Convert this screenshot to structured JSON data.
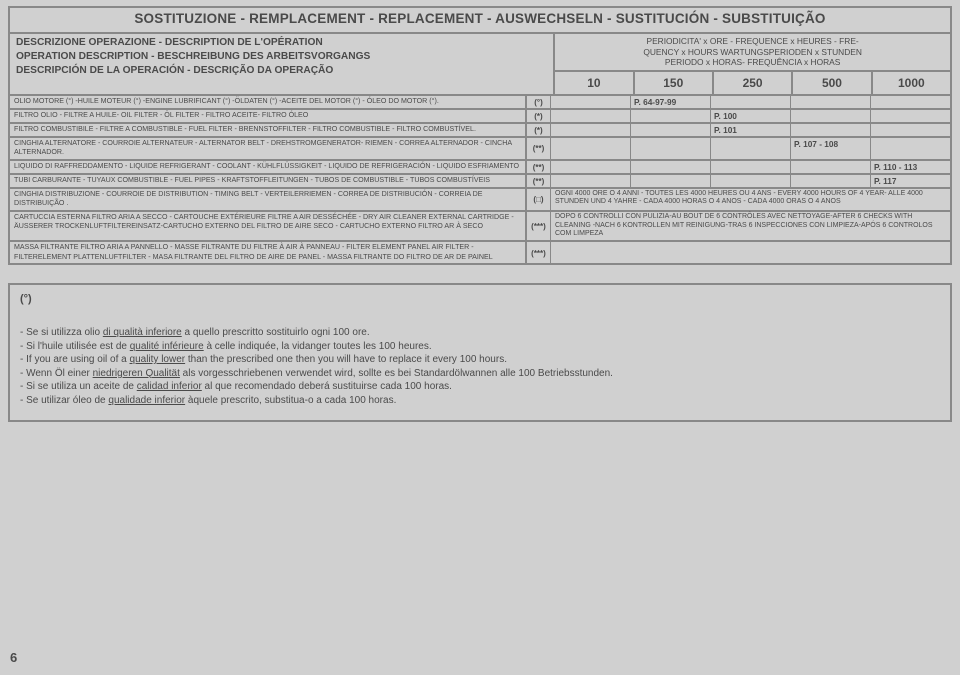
{
  "title": "SOSTITUZIONE - REMPLACEMENT - REPLACEMENT - AUSWECHSELN - SUSTITUCIÓN - SUBSTITUIÇÃO",
  "top_left": {
    "l1": "DESCRIZIONE OPERAZIONE - DESCRIPTION DE L'OPÉRATION",
    "l2": "OPERATION DESCRIPTION  - BESCHREIBUNG DES ARBEITSVORGANGS",
    "l3": "DESCRIPCIÓN DE LA OPERACIÓN - DESCRIÇÃO DA OPERAÇÃO"
  },
  "freq_header": {
    "l1": "PERIODICITA' x ORE - FREQUENCE x HEURES - FRE-",
    "l2": "QUENCY x HOURS  WARTUNGSPERIODEN  x STUNDEN",
    "l3": "PERIODO x HORAS- FREQUÊNCIA x HORAS"
  },
  "freq_cols": [
    "10",
    "150",
    "250",
    "500",
    "1000"
  ],
  "rows": [
    {
      "desc": "OLIO MOTORE (°) -HUILE MOTEUR (°) -ENGINE LUBRIFICANT (°) -ÖLDATEN (°) -ACEITE DEL MOTOR (°) - ÓLEO DO MOTOR (°).",
      "mark": "(°)",
      "cells": [
        "",
        "P. 64-97-99",
        "",
        "",
        ""
      ]
    },
    {
      "desc": "FILTRO OLIO - FILTRE A HUILE- OIL FILTER - ÖL FILTER - FILTRO ACEITE- FILTRO ÓLEO",
      "mark": "(*)",
      "cells": [
        "",
        "",
        "P. 100",
        "",
        ""
      ]
    },
    {
      "desc": "FILTRO COMBUSTIBILE - FILTRE A COMBUSTIBLE - FUEL FILTER - BRENNSTOFFILTER - FILTRO COMBUSTIBLE - FILTRO COMBUSTÍVEL.",
      "mark": "(*)",
      "cells": [
        "",
        "",
        "P. 101",
        "",
        ""
      ]
    },
    {
      "desc": "CINGHIA ALTERNATORE - COURROIE ALTERNATEUR - ALTERNATOR BELT - DREHSTROMGENERATOR- RIEMEN - CORREA ALTERNADOR - CINCHA ALTERNADOR.",
      "mark": "(**)",
      "cells": [
        "",
        "",
        "",
        "P. 107 - 108",
        ""
      ]
    },
    {
      "desc": "LIQUIDO DI RAFFREDDAMENTO - LIQUIDE REFRIGERANT - COOLANT - KÜHLFLÜSSIGKEIT - LIQUIDO DE REFRIGERACIÓN - LIQUIDO ESFRIAMENTO",
      "mark": "(**)",
      "cells": [
        "",
        "",
        "",
        "",
        "P. 110 - 113"
      ]
    },
    {
      "desc": "TUBI CARBURANTE - TUYAUX COMBUSTIBLE - FUEL PIPES - KRAFTSTOFFLEITUNGEN - TUBOS DE COMBUSTIBLE - TUBOS COMBUSTÍVEIS",
      "mark": "(**)",
      "cells": [
        "",
        "",
        "",
        "",
        "P. 117"
      ]
    },
    {
      "desc": "CINGHIA DISTRIBUZIONE - COURROIE DE DISTRIBUTION - TIMING BELT - VERTEILERRIEMEN - CORREA DE DISTRIBUCIÓN  - CORREIA DE DISTRIBUIÇÃO .",
      "mark": "(□)",
      "note": "OGNI 4000 ORE O 4 ANNI  - TOUTES LES 4000 HEURES OU 4 ANS - EVERY 4000 HOURS OF 4 YEAR- ALLE 4000 STUNDEN UND 4 YAHRE - CADA 4000 HORAS O 4 ANOS - CADA 4000 ORAS O 4 ANOS"
    },
    {
      "desc": "CARTUCCIA ESTERNA FILTRO ARIA  A SECCO -  CARTOUCHE EXTÉRIEURE FILTRE A AIR DESSÉCHÉE - DRY AIR CLEANER EXTERNAL CARTRIDGE - ÄUSSERER TROCKENLUFTFILTEREINSATZ-CARTUCHO EXTERNO DEL FILTRO DE AIRE SECO - CARTUCHO EXTERNO FILTRO AR À SECO",
      "mark": "(***)",
      "note": "DOPO 6 CONTROLLI CON PULIZIA-AU BOUT DE 6 CONTRÔLES AVEC NETTOYAGE-AFTER 6 CHECKS WITH CLEANING -NACH 6 KONTROLLEN MIT REINIGUNG-TRAS 6 INSPECCIONES CON LIMPIEZA-APÓS 6 CONTROLOS COM LIMPEZA"
    },
    {
      "desc": "MASSA FILTRANTE FILTRO ARIA A PANNELLO - MASSE FILTRANTE DU FILTRE À AIR À PANNEAU - FILTER ELEMENT PANEL AIR FILTER - FILTERELEMENT PLATTENLUFTFILTER - MASA FILTRANTE DEL FILTRO DE AIRE DE PANEL - MASSA FILTRANTE DO FILTRO DE AR DE PAINEL",
      "mark": "(***)",
      "note": ""
    }
  ],
  "footnote": {
    "symbol": "(°)",
    "lines": [
      "- Se si utilizza olio di qualità inferiore a quello prescritto sostituirlo ogni 100 ore.",
      "- Si l'huile utilisée est de qualité inférieure à celle indiquée, la vidanger toutes les 100 heures.",
      "- If you are using oil of a quality lower than the prescribed one then you will have to replace it every 100  hours.",
      "- Wenn Öl einer niedrigeren Qualität als vorgesschriebenen verwendet wird, sollte es bei Standardölwannen alle 100  Betriebsstunden.",
      "- Si se utiliza un aceite de calidad inferior al que recomendado deberá sustituirse cada 100  horas.",
      "- Se utilizar óleo de qualidade inferior àquele prescrito, substitua-o a cada 100 horas."
    ]
  },
  "page_number": "6"
}
